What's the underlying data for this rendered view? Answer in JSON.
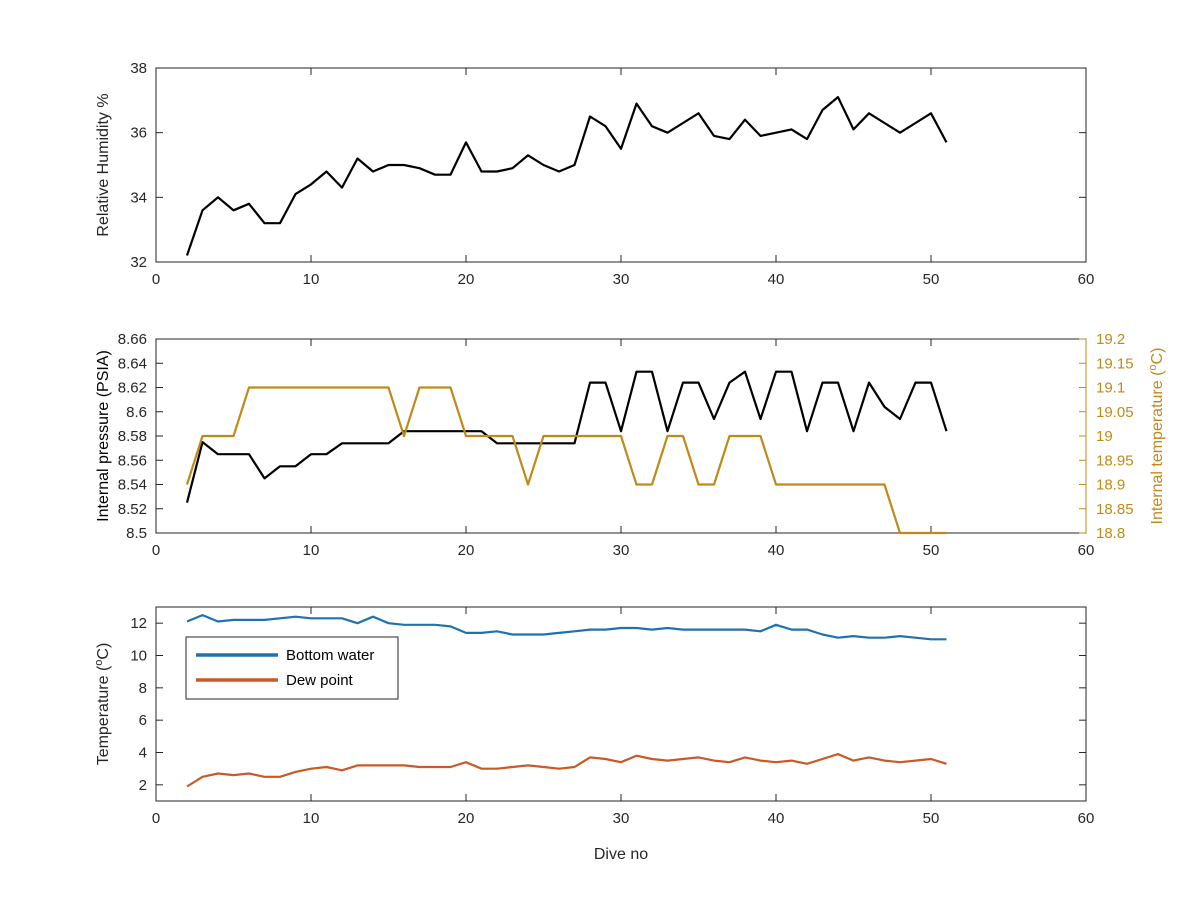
{
  "figure": {
    "background": "#ffffff",
    "axis_color": "#262626"
  },
  "chart_data": [
    {
      "type": "line",
      "xlabel": "",
      "ylabel": "Relative Humidity %",
      "xlim": [
        0,
        60
      ],
      "ylim": [
        32,
        38
      ],
      "xticks": [
        0,
        10,
        20,
        30,
        40,
        50,
        60
      ],
      "yticks": [
        32,
        34,
        36,
        38
      ],
      "grid": false,
      "series": [
        {
          "color": "#000000",
          "x": [
            2,
            3,
            4,
            5,
            6,
            7,
            8,
            9,
            10,
            11,
            12,
            13,
            14,
            15,
            16,
            17,
            18,
            19,
            20,
            21,
            22,
            23,
            24,
            25,
            26,
            27,
            28,
            29,
            30,
            31,
            32,
            33,
            34,
            35,
            36,
            37,
            38,
            39,
            40,
            41,
            42,
            43,
            44,
            45,
            46,
            47,
            48,
            49,
            50,
            51
          ],
          "y": [
            32.2,
            33.6,
            34.0,
            33.6,
            33.8,
            33.2,
            33.2,
            34.1,
            34.4,
            34.8,
            34.3,
            35.2,
            34.8,
            35.0,
            35.0,
            34.9,
            34.7,
            34.7,
            35.7,
            34.8,
            34.8,
            34.9,
            35.3,
            35.0,
            34.8,
            35.0,
            36.5,
            36.2,
            35.5,
            36.9,
            36.2,
            36.0,
            36.3,
            36.6,
            35.9,
            35.8,
            36.4,
            35.9,
            36.0,
            36.1,
            35.8,
            36.7,
            37.1,
            36.1,
            36.6,
            36.3,
            36.0,
            36.3,
            36.6,
            35.7
          ]
        }
      ]
    },
    {
      "type": "line",
      "xlabel": "",
      "ylabel": "Internal pressure (PSIA)",
      "y2label": "Internal temperature (",
      "y2label_sup": "o",
      "y2label_tail": "C)",
      "xlim": [
        0,
        60
      ],
      "ylim": [
        8.5,
        8.66
      ],
      "y2lim": [
        18.8,
        19.2
      ],
      "xticks": [
        0,
        10,
        20,
        30,
        40,
        50,
        60
      ],
      "yticks": [
        "8.5",
        "8.52",
        "8.54",
        "8.56",
        "8.58",
        "8.6",
        "8.62",
        "8.64",
        "8.66"
      ],
      "y2ticks": [
        "18.8",
        "18.85",
        "18.9",
        "18.95",
        "19",
        "19.05",
        "19.1",
        "19.15",
        "19.2"
      ],
      "grid": false,
      "series": [
        {
          "axis": "left",
          "color": "#000000",
          "x": [
            2,
            3,
            4,
            5,
            6,
            7,
            8,
            9,
            10,
            11,
            12,
            13,
            14,
            15,
            16,
            17,
            18,
            19,
            20,
            21,
            22,
            23,
            24,
            25,
            26,
            27,
            28,
            29,
            30,
            31,
            32,
            33,
            34,
            35,
            36,
            37,
            38,
            39,
            40,
            41,
            42,
            43,
            44,
            45,
            46,
            47,
            48,
            49,
            50,
            51
          ],
          "y": [
            8.525,
            8.575,
            8.565,
            8.565,
            8.565,
            8.545,
            8.555,
            8.555,
            8.565,
            8.565,
            8.574,
            8.574,
            8.574,
            8.574,
            8.584,
            8.584,
            8.584,
            8.584,
            8.584,
            8.584,
            8.574,
            8.574,
            8.574,
            8.574,
            8.574,
            8.574,
            8.624,
            8.624,
            8.584,
            8.633,
            8.633,
            8.584,
            8.624,
            8.624,
            8.594,
            8.624,
            8.633,
            8.594,
            8.633,
            8.633,
            8.584,
            8.624,
            8.624,
            8.584,
            8.624,
            8.604,
            8.594,
            8.624,
            8.624,
            8.584
          ]
        },
        {
          "axis": "right",
          "color": "#bf8a1a",
          "x": [
            2,
            3,
            4,
            5,
            6,
            7,
            8,
            9,
            10,
            11,
            12,
            13,
            14,
            15,
            16,
            17,
            18,
            19,
            20,
            21,
            22,
            23,
            24,
            25,
            26,
            27,
            28,
            29,
            30,
            31,
            32,
            33,
            34,
            35,
            36,
            37,
            38,
            39,
            40,
            41,
            42,
            43,
            44,
            45,
            46,
            47,
            48,
            49,
            50,
            51
          ],
          "y": [
            18.9,
            19.0,
            19.0,
            19.0,
            19.1,
            19.1,
            19.1,
            19.1,
            19.1,
            19.1,
            19.1,
            19.1,
            19.1,
            19.1,
            19.0,
            19.1,
            19.1,
            19.1,
            19.0,
            19.0,
            19.0,
            19.0,
            18.9,
            19.0,
            19.0,
            19.0,
            19.0,
            19.0,
            19.0,
            18.9,
            18.9,
            19.0,
            19.0,
            18.9,
            18.9,
            19.0,
            19.0,
            19.0,
            18.9,
            18.9,
            18.9,
            18.9,
            18.9,
            18.9,
            18.9,
            18.9,
            18.8,
            18.8,
            18.8,
            18.8
          ]
        }
      ]
    },
    {
      "type": "line",
      "xlabel": "Dive no",
      "ylabel": "Temperature (",
      "ylabel_sup": "o",
      "ylabel_tail": "C)",
      "xlim": [
        0,
        60
      ],
      "ylim": [
        1,
        13
      ],
      "xticks": [
        0,
        10,
        20,
        30,
        40,
        50,
        60
      ],
      "yticks": [
        2,
        4,
        6,
        8,
        10,
        12
      ],
      "grid": false,
      "legend": "top-left",
      "series": [
        {
          "name": "Bottom water",
          "color": "#1f72b0",
          "x": [
            2,
            3,
            4,
            5,
            6,
            7,
            8,
            9,
            10,
            11,
            12,
            13,
            14,
            15,
            16,
            17,
            18,
            19,
            20,
            21,
            22,
            23,
            24,
            25,
            26,
            27,
            28,
            29,
            30,
            31,
            32,
            33,
            34,
            35,
            36,
            37,
            38,
            39,
            40,
            41,
            42,
            43,
            44,
            45,
            46,
            47,
            48,
            49,
            50,
            51
          ],
          "y": [
            12.1,
            12.5,
            12.1,
            12.2,
            12.2,
            12.2,
            12.3,
            12.4,
            12.3,
            12.3,
            12.3,
            12.0,
            12.4,
            12.0,
            11.9,
            11.9,
            11.9,
            11.8,
            11.4,
            11.4,
            11.5,
            11.3,
            11.3,
            11.3,
            11.4,
            11.5,
            11.6,
            11.6,
            11.7,
            11.7,
            11.6,
            11.7,
            11.6,
            11.6,
            11.6,
            11.6,
            11.6,
            11.5,
            11.9,
            11.6,
            11.6,
            11.3,
            11.1,
            11.2,
            11.1,
            11.1,
            11.2,
            11.1,
            11.0,
            11.0
          ]
        },
        {
          "name": "Dew point",
          "color": "#c95a27",
          "x": [
            2,
            3,
            4,
            5,
            6,
            7,
            8,
            9,
            10,
            11,
            12,
            13,
            14,
            15,
            16,
            17,
            18,
            19,
            20,
            21,
            22,
            23,
            24,
            25,
            26,
            27,
            28,
            29,
            30,
            31,
            32,
            33,
            34,
            35,
            36,
            37,
            38,
            39,
            40,
            41,
            42,
            43,
            44,
            45,
            46,
            47,
            48,
            49,
            50,
            51
          ],
          "y": [
            1.9,
            2.5,
            2.7,
            2.6,
            2.7,
            2.5,
            2.5,
            2.8,
            3.0,
            3.1,
            2.9,
            3.2,
            3.2,
            3.2,
            3.2,
            3.1,
            3.1,
            3.1,
            3.4,
            3.0,
            3.0,
            3.1,
            3.2,
            3.1,
            3.0,
            3.1,
            3.7,
            3.6,
            3.4,
            3.8,
            3.6,
            3.5,
            3.6,
            3.7,
            3.5,
            3.4,
            3.7,
            3.5,
            3.4,
            3.5,
            3.3,
            3.6,
            3.9,
            3.5,
            3.7,
            3.5,
            3.4,
            3.5,
            3.6,
            3.3
          ]
        }
      ]
    }
  ]
}
